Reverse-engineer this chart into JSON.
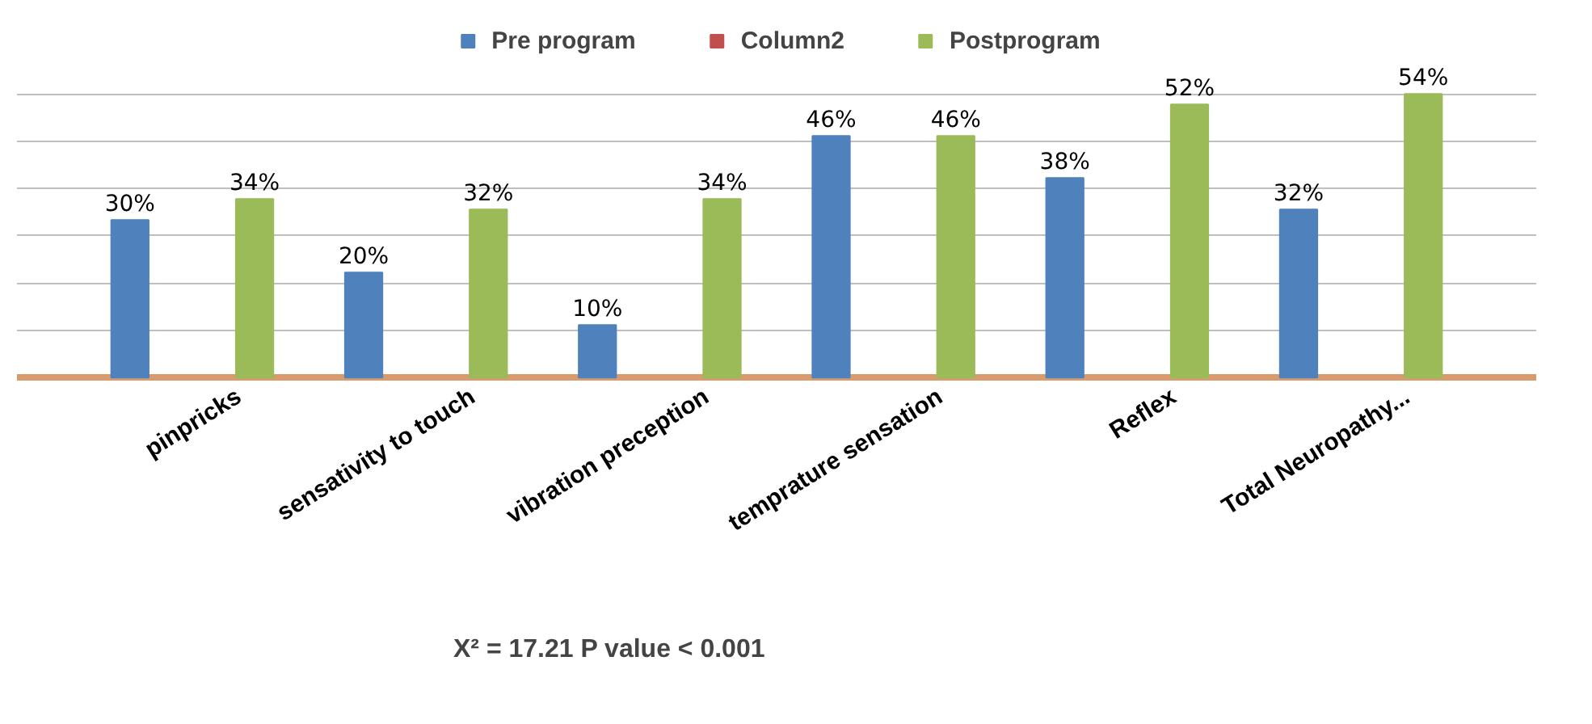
{
  "chart_data": {
    "type": "bar",
    "categories": [
      "pinpricks",
      "sensativity to touch",
      "vibration preception",
      "temprature sensation",
      "Reflex",
      "Total Neuropathy..."
    ],
    "series": [
      {
        "name": "Pre program",
        "color": "#4f81bd",
        "values": [
          30,
          20,
          10,
          46,
          38,
          32
        ],
        "value_labels": [
          "30%",
          "20%",
          "10%",
          "46%",
          "38%",
          "32%"
        ]
      },
      {
        "name": "Column2",
        "color": "#c0504d",
        "values": [
          null,
          null,
          null,
          null,
          null,
          null
        ]
      },
      {
        "name": "Postprogram",
        "color": "#9bbb59",
        "values": [
          34,
          32,
          34,
          46,
          52,
          54
        ],
        "value_labels": [
          "34%",
          "32%",
          "34%",
          "46%",
          "52%",
          "54%"
        ]
      }
    ],
    "grid": "y",
    "legend": "top",
    "annotations": [
      "X² = 17.21 P value < 0.001"
    ]
  }
}
